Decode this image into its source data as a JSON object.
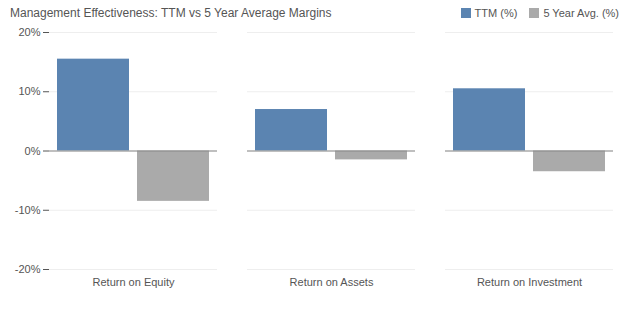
{
  "chart_data": {
    "type": "bar",
    "title": "Management Effectiveness: TTM vs 5 Year Average Margins",
    "categories": [
      "Return on Equity",
      "Return on Assets",
      "Return on Investment"
    ],
    "series": [
      {
        "name": "TTM (%)",
        "color": "#5b84b1",
        "values": [
          15.5,
          7.0,
          10.5
        ]
      },
      {
        "name": "5 Year Avg. (%)",
        "color": "#aaaaaa",
        "values": [
          -8.5,
          -1.5,
          -3.5
        ]
      }
    ],
    "ylim": [
      -20,
      20
    ],
    "yticks": [
      {
        "value": -20,
        "label": "-20%"
      },
      {
        "value": -10,
        "label": "-10%"
      },
      {
        "value": 0,
        "label": "0%"
      },
      {
        "value": 10,
        "label": "10%"
      },
      {
        "value": 20,
        "label": "20%"
      }
    ],
    "grid": true,
    "legend": "upper right"
  }
}
